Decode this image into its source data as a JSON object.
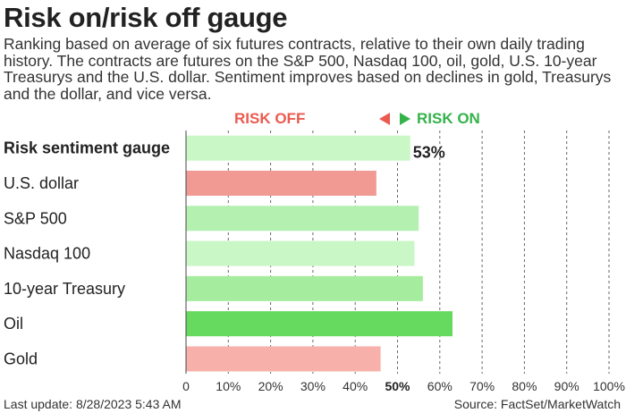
{
  "title": "Risk on/risk off gauge",
  "subtitle": "Ranking based on average of six futures contracts, relative to their own daily trading history. The contracts are futures on the S&P 500, Nasdaq 100, oil, gold, U.S. 10-year Treasurys and the U.S. dollar. Sentiment improves based on declines in gold, Treasurys and the dollar, and vice versa.",
  "legend": {
    "risk_off": "RISK OFF",
    "risk_on": "RISK ON"
  },
  "footer": {
    "last_update": "Last update: 8/28/2023 5:43 AM",
    "source": "Source: FactSet/MarketWatch"
  },
  "colors": {
    "risk_off": "#ec5a4f",
    "risk_on": "#34b34a"
  },
  "chart_data": {
    "type": "bar",
    "orientation": "horizontal",
    "categories": [
      "Risk sentiment gauge",
      "U.S. dollar",
      "S&P 500",
      "Nasdaq 100",
      "10-year Treasury",
      "Oil",
      "Gold"
    ],
    "values": [
      53,
      45,
      55,
      54,
      56,
      63,
      46
    ],
    "bar_colors": [
      "#c9f7c6",
      "#f09a93",
      "#b4f0b0",
      "#c9f7c6",
      "#a6ec9f",
      "#66da5e",
      "#f8b0aa"
    ],
    "value_labels": [
      "53%",
      "",
      "",
      "",
      "",
      "",
      ""
    ],
    "x_ticks": [
      "0",
      "10%",
      "20%",
      "30%",
      "40%",
      "50%",
      "60%",
      "70%",
      "80%",
      "90%",
      "100%"
    ],
    "xlim": [
      0,
      100
    ],
    "grid": "vertical dashed"
  }
}
